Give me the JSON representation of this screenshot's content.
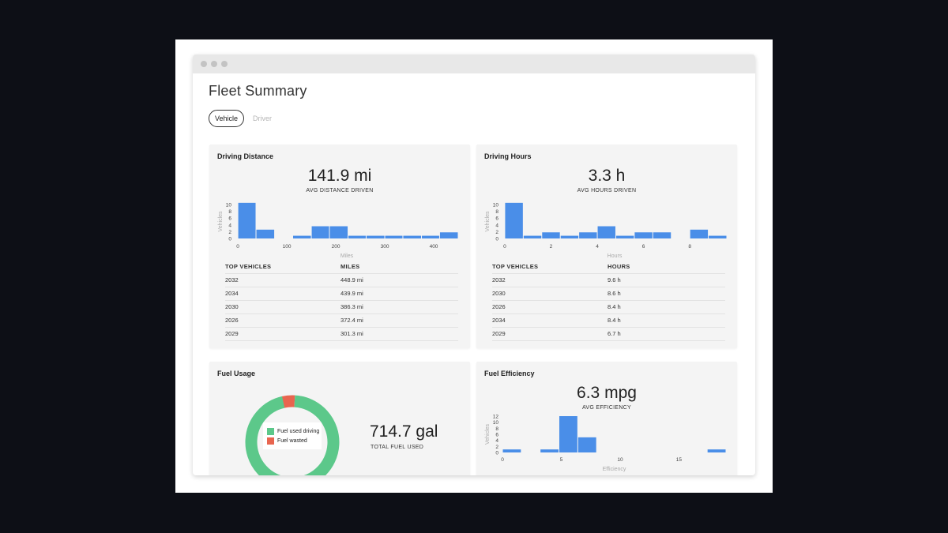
{
  "page": {
    "title": "Fleet Summary",
    "tabs": [
      {
        "label": "Vehicle",
        "active": true
      },
      {
        "label": "Driver",
        "active": false
      }
    ]
  },
  "colors": {
    "bar": "#4a8ee8",
    "fuel_driving": "#5cc88a",
    "fuel_wasted": "#e8654f"
  },
  "cards": {
    "distance": {
      "title": "Driving Distance",
      "value": "141.9 mi",
      "caption": "AVG DISTANCE DRIVEN",
      "table": {
        "headers": [
          "TOP VEHICLES",
          "MILES"
        ],
        "rows": [
          [
            "2032",
            "448.9 mi"
          ],
          [
            "2034",
            "439.9 mi"
          ],
          [
            "2030",
            "386.3 mi"
          ],
          [
            "2026",
            "372.4 mi"
          ],
          [
            "2029",
            "301.3 mi"
          ]
        ]
      }
    },
    "hours": {
      "title": "Driving Hours",
      "value": "3.3 h",
      "caption": "AVG HOURS DRIVEN",
      "table": {
        "headers": [
          "TOP VEHICLES",
          "HOURS"
        ],
        "rows": [
          [
            "2032",
            "9.6 h"
          ],
          [
            "2030",
            "8.6 h"
          ],
          [
            "2026",
            "8.4 h"
          ],
          [
            "2034",
            "8.4 h"
          ],
          [
            "2029",
            "6.7 h"
          ]
        ]
      }
    },
    "fuel": {
      "title": "Fuel Usage",
      "value": "714.7 gal",
      "caption": "TOTAL FUEL USED",
      "legend": [
        "Fuel used driving",
        "Fuel wasted"
      ]
    },
    "efficiency": {
      "title": "Fuel Efficiency",
      "value": "6.3 mpg",
      "caption": "AVG EFFICIENCY"
    }
  },
  "chart_data": [
    {
      "id": "distance",
      "type": "bar",
      "xlabel": "Miles",
      "ylabel": "Vehicles",
      "xlim": [
        -5,
        450
      ],
      "ylim": [
        0,
        10
      ],
      "xticks": [
        0,
        100,
        200,
        300,
        400
      ],
      "yticks": [
        0,
        2,
        4,
        6,
        8,
        10
      ],
      "bins": [
        {
          "x0": 0,
          "x1": 37,
          "v": 10.5
        },
        {
          "x0": 37,
          "x1": 75,
          "v": 2.6
        },
        {
          "x0": 112,
          "x1": 150,
          "v": 0.8
        },
        {
          "x0": 150,
          "x1": 187,
          "v": 3.6
        },
        {
          "x0": 187,
          "x1": 225,
          "v": 3.6
        },
        {
          "x0": 225,
          "x1": 262,
          "v": 0.8
        },
        {
          "x0": 262,
          "x1": 300,
          "v": 0.8
        },
        {
          "x0": 300,
          "x1": 337,
          "v": 0.8
        },
        {
          "x0": 337,
          "x1": 375,
          "v": 0.8
        },
        {
          "x0": 375,
          "x1": 412,
          "v": 0.8
        },
        {
          "x0": 412,
          "x1": 450,
          "v": 1.8
        }
      ]
    },
    {
      "id": "hours",
      "type": "bar",
      "xlabel": "Hours",
      "ylabel": "Vehicles",
      "xlim": [
        -0.1,
        9.6
      ],
      "ylim": [
        0,
        10
      ],
      "xticks": [
        0,
        2,
        4,
        6,
        8
      ],
      "yticks": [
        0,
        2,
        4,
        6,
        8,
        10
      ],
      "bins": [
        {
          "x0": 0,
          "x1": 0.8,
          "v": 10.5
        },
        {
          "x0": 0.8,
          "x1": 1.6,
          "v": 0.8
        },
        {
          "x0": 1.6,
          "x1": 2.4,
          "v": 1.8
        },
        {
          "x0": 2.4,
          "x1": 3.2,
          "v": 0.8
        },
        {
          "x0": 3.2,
          "x1": 4.0,
          "v": 1.8
        },
        {
          "x0": 4.0,
          "x1": 4.8,
          "v": 3.6
        },
        {
          "x0": 4.8,
          "x1": 5.6,
          "v": 0.8
        },
        {
          "x0": 5.6,
          "x1": 6.4,
          "v": 1.8
        },
        {
          "x0": 6.4,
          "x1": 7.2,
          "v": 1.8
        },
        {
          "x0": 8.0,
          "x1": 8.8,
          "v": 2.6
        },
        {
          "x0": 8.8,
          "x1": 9.6,
          "v": 0.8
        }
      ]
    },
    {
      "id": "efficiency",
      "type": "bar",
      "xlabel": "Efficiency",
      "ylabel": "Vehicles",
      "xlim": [
        0,
        19
      ],
      "ylim": [
        0,
        12
      ],
      "xticks": [
        0,
        5,
        10,
        15
      ],
      "yticks": [
        0,
        2,
        4,
        6,
        8,
        10,
        12
      ],
      "bins": [
        {
          "x0": 0,
          "x1": 1.6,
          "v": 1
        },
        {
          "x0": 3.2,
          "x1": 4.8,
          "v": 1
        },
        {
          "x0": 4.8,
          "x1": 6.4,
          "v": 12
        },
        {
          "x0": 6.4,
          "x1": 8.0,
          "v": 5
        },
        {
          "x0": 17.4,
          "x1": 19.0,
          "v": 1
        }
      ]
    },
    {
      "id": "fuel",
      "type": "pie",
      "labels": [
        "Fuel used driving",
        "Fuel wasted"
      ],
      "values": [
        95.5,
        4.5
      ]
    }
  ]
}
